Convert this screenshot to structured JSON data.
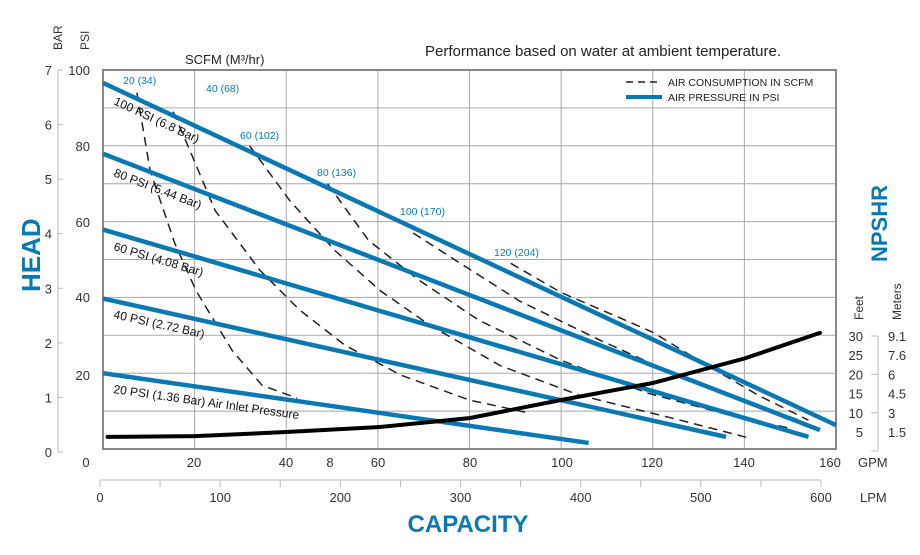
{
  "chart_data": {
    "type": "line",
    "title": "Performance based on water at ambient temperature.",
    "xlabel": "CAPACITY",
    "ylabel": "HEAD",
    "y2label": "NPSHR",
    "scfm_label": "SCFM (M³/hr)",
    "x_units": {
      "primary": "GPM",
      "secondary": "LPM"
    },
    "y_units": {
      "primary": "PSI",
      "secondary": "BAR"
    },
    "npshr_units": {
      "primary": "Feet",
      "secondary": "Meters"
    },
    "xlim": [
      0,
      160
    ],
    "ylim": [
      0,
      100
    ],
    "grid": true,
    "legend_position": "top-right",
    "legend": [
      {
        "label": "AIR CONSUMPTION IN SCFM",
        "style": "dashed",
        "color": "#222222"
      },
      {
        "label": "AIR PRESSURE IN PSI",
        "style": "solid",
        "color": "#0a79b3"
      }
    ],
    "colors": {
      "pressure": "#0a79b3",
      "air": "#222222",
      "npshr": "#000000",
      "accent": "#0a79b3"
    },
    "gpm_ticks": [
      "0",
      "20",
      "40",
      "8",
      "60",
      "80",
      "100",
      "120",
      "140",
      "160"
    ],
    "lpm_ticks": [
      "0",
      "100",
      "200",
      "300",
      "400",
      "500",
      "600"
    ],
    "psi_ticks": [
      "100",
      "80",
      "60",
      "40",
      "20"
    ],
    "bar_ticks": [
      "7",
      "6",
      "5",
      "4",
      "3",
      "2",
      "1",
      "0"
    ],
    "feet_ticks": [
      "30",
      "25",
      "20",
      "15",
      "10",
      "5"
    ],
    "meters_ticks": [
      "9.1",
      "7.6",
      "6",
      "4.5",
      "3",
      "1.5"
    ],
    "pressure_series": [
      {
        "name": "100 PSI (6.8 Bar)",
        "x": [
          0,
          160
        ],
        "y": [
          96.6,
          6.3
        ]
      },
      {
        "name": "80 PSI (5.44 Bar)",
        "x": [
          0,
          156.5
        ],
        "y": [
          77.9,
          5
        ]
      },
      {
        "name": "60 PSI (4.08 Bar)",
        "x": [
          0,
          154
        ],
        "y": [
          57.9,
          3.2
        ]
      },
      {
        "name": "40 PSI (2.72 Bar)",
        "x": [
          0,
          136
        ],
        "y": [
          39.7,
          3.2
        ]
      },
      {
        "name": "20 PSI (1.36 Bar) Air Inlet Pressure",
        "x": [
          0,
          106
        ],
        "y": [
          20,
          1.6
        ]
      }
    ],
    "air_series": [
      {
        "name": "20 (34)",
        "x": [
          7.4,
          10.3,
          15.7,
          20.3,
          28.2,
          34.7,
          42.4
        ],
        "y": [
          94,
          73.4,
          54.2,
          41.8,
          26,
          16.8,
          13.4
        ]
      },
      {
        "name": "40 (68)",
        "x": [
          15.3,
          19,
          24.5,
          34.3,
          43,
          52.8,
          65,
          80,
          93
        ],
        "y": [
          89,
          78.7,
          62.9,
          47.1,
          36.6,
          27.4,
          19.5,
          12.9,
          9.5
        ]
      },
      {
        "name": "60 (102)",
        "x": [
          32,
          40.8,
          50.6,
          60.5,
          71.4,
          86.7,
          104,
          126,
          141
        ],
        "y": [
          80,
          65.5,
          52.4,
          41.8,
          32.6,
          22,
          14.2,
          7.6,
          2.9
        ]
      },
      {
        "name": "80 (136)",
        "x": [
          49,
          58,
          69,
          82,
          100,
          119,
          139,
          150
        ],
        "y": [
          70,
          55,
          44.5,
          34,
          23.4,
          14.7,
          8.2,
          5.5
        ]
      },
      {
        "name": "100 (170)",
        "x": [
          67.7,
          78,
          91,
          108.5,
          128,
          145.6,
          152
        ],
        "y": [
          57,
          49,
          39,
          28.7,
          18,
          10.3,
          7.6
        ]
      },
      {
        "name": "120 (204)",
        "x": [
          89,
          100,
          113,
          120,
          130,
          143,
          154
        ],
        "y": [
          49,
          41.3,
          34.5,
          30.8,
          23.4,
          14.2,
          7.6
        ]
      }
    ],
    "npshr_series": {
      "name": "NPSHR",
      "x": [
        1,
        20,
        40,
        60,
        80,
        100,
        120,
        140,
        156.5
      ],
      "y_feet": [
        3.2,
        3.4,
        4.5,
        5.8,
        8.2,
        13,
        17.5,
        24,
        30.8
      ]
    }
  }
}
